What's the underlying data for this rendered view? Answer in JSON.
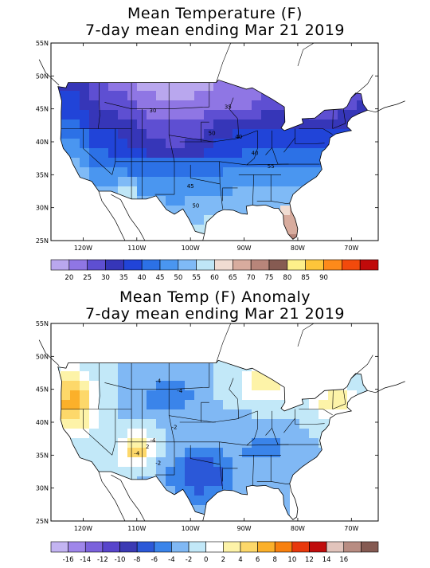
{
  "map1": {
    "title_line1": "Mean Temperature (F)",
    "title_line2": "7-day mean ending Mar 21 2019",
    "lat_labels": [
      "55N",
      "50N",
      "45N",
      "40N",
      "35N",
      "30N",
      "25N"
    ],
    "lon_labels": [
      "120W",
      "110W",
      "100W",
      "90W",
      "80W",
      "70W"
    ],
    "contour_labels": [
      "30",
      "35",
      "40",
      "40",
      "45",
      "50",
      "50",
      "55"
    ],
    "legend_labels": [
      "20",
      "25",
      "30",
      "35",
      "40",
      "45",
      "50",
      "55",
      "60",
      "65",
      "70",
      "75",
      "80",
      "85",
      "90"
    ],
    "legend_colors": [
      "#b9a7ee",
      "#8f76e4",
      "#5e4fd2",
      "#3636b8",
      "#2144d8",
      "#2c71e6",
      "#4a96f0",
      "#7fbaf6",
      "#bfe6f6",
      "#f0dcd2",
      "#d8ac9e",
      "#b8857a",
      "#865b52",
      "#fdf08a",
      "#fdc53a",
      "#fd8a1a",
      "#f24a0c",
      "#c00a0a"
    ]
  },
  "map2": {
    "title_line1": "Mean Temp (F) Anomaly",
    "title_line2": "7-day mean ending Mar 21 2019",
    "lat_labels": [
      "55N",
      "50N",
      "45N",
      "40N",
      "35N",
      "30N",
      "25N"
    ],
    "lon_labels": [
      "120W",
      "110W",
      "100W",
      "90W",
      "80W",
      "70W"
    ],
    "contour_labels": [
      "-4",
      "-4",
      "-2",
      "-4",
      "-2",
      "-4",
      "2"
    ],
    "legend_labels": [
      "-16",
      "-14",
      "-12",
      "-10",
      "-8",
      "-6",
      "-4",
      "-2",
      "0",
      "2",
      "4",
      "6",
      "8",
      "10",
      "12",
      "14",
      "16"
    ],
    "legend_colors": [
      "#c3b4f2",
      "#9f86ea",
      "#7b62dc",
      "#5845cc",
      "#3b3ab4",
      "#2b58d8",
      "#3a84ea",
      "#80b8f4",
      "#c2e8f8",
      "#ffffff",
      "#fdf3a8",
      "#fdd86a",
      "#fbb02a",
      "#f8800e",
      "#e8380c",
      "#c00c0c",
      "#e2c4bc",
      "#b88c82",
      "#855a52"
    ]
  }
}
